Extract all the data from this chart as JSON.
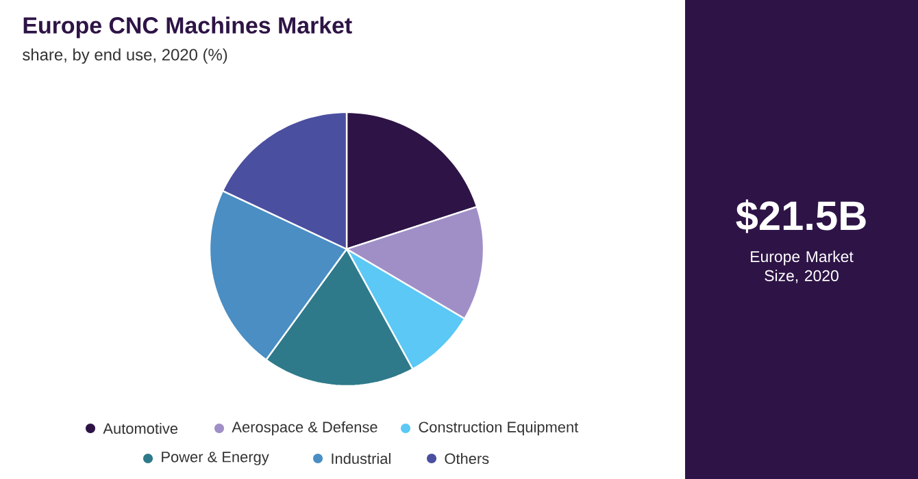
{
  "chart_data": {
    "type": "pie",
    "title": "Europe CNC Machines Market",
    "subtitle": "share, by end use, 2020 (%)",
    "categories": [
      "Automotive",
      "Aerospace & Defense",
      "Construction Equipment",
      "Power & Energy",
      "Industrial",
      "Others"
    ],
    "values": [
      20,
      13.5,
      8.5,
      18,
      22,
      18
    ],
    "colors": [
      "#2e1446",
      "#a08fc7",
      "#5bc8f5",
      "#2e7a8a",
      "#4a8ec4",
      "#4a4fa0"
    ],
    "legend": "bottom",
    "annotations": [
      "$21.5B",
      "Europe Market Size, 2020"
    ]
  }
}
